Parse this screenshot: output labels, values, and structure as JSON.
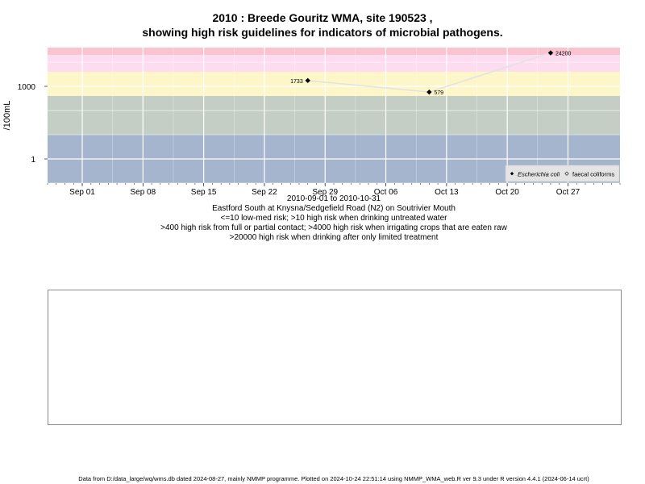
{
  "titles": {
    "line1": "2010 : Breede Gouritz WMA, site 190523 ,",
    "line2": "showing high risk guidelines for indicators of microbial pathogens."
  },
  "subtitles": [
    "2010-09-01 to 2010-10-31",
    "Eastford South at Knysna/Sedgefield Road (N2) on Soutrivier Mouth",
    "<=10 low-med risk; >10 high risk when drinking untreated water",
    ">400 high risk from full or partial contact; >4000 high risk when irrigating crops that are eaten raw",
    ">20000 high risk when drinking after only limited treatment"
  ],
  "footer": "Data from D:/data_large/wq/wms.db dated 2024-08-27, mainly NMMP programme. Plotted on 2024-10-24 22:51:14 using NMMP_WMA_web.R ver 9.3 under R version 4.4.1 (2024-06-14 ucrt)",
  "chart_data": {
    "type": "line",
    "ylabel": "/100mL",
    "y_scale": "log10",
    "ylim": [
      0.1,
      20000
    ],
    "y_ticks": [
      {
        "value": 1,
        "label": "1"
      },
      {
        "value": 1000,
        "label": "1000"
      }
    ],
    "x_start": "2010-08-28",
    "x_end": "2010-11-02",
    "x_ticks": [
      {
        "date": "2010-09-01",
        "label": "Sep 01"
      },
      {
        "date": "2010-09-08",
        "label": "Sep 08"
      },
      {
        "date": "2010-09-15",
        "label": "Sep 15"
      },
      {
        "date": "2010-09-22",
        "label": "Sep 22"
      },
      {
        "date": "2010-09-29",
        "label": "Sep 29"
      },
      {
        "date": "2010-10-06",
        "label": "Oct 06"
      },
      {
        "date": "2010-10-13",
        "label": "Oct 13"
      },
      {
        "date": "2010-10-20",
        "label": "Oct 20"
      },
      {
        "date": "2010-10-27",
        "label": "Oct 27"
      }
    ],
    "risk_bands": [
      {
        "from": 0.1,
        "to": 10,
        "color": "#a4b5cd"
      },
      {
        "from": 10,
        "to": 400,
        "color": "#c4cec4"
      },
      {
        "from": 400,
        "to": 4000,
        "color": "#fdf6c8"
      },
      {
        "from": 4000,
        "to": 20000,
        "color": "#fddcf0"
      },
      {
        "from": 20000,
        "to": 40000,
        "color": "#fbc2cf"
      }
    ],
    "grid": true,
    "series": [
      {
        "name": "Escherichia coli",
        "color": "#000000",
        "line_color": "#e2e2e2",
        "points": [
          {
            "date": "2010-09-27",
            "value": 1733,
            "label": "1733",
            "label_side": "left"
          },
          {
            "date": "2010-10-11",
            "value": 579,
            "label": "579",
            "label_side": "right"
          },
          {
            "date": "2010-10-25",
            "value": 24200,
            "label": "24200",
            "label_side": "right"
          }
        ]
      }
    ],
    "legend": {
      "position": "bottom-right",
      "entries": [
        "Escherichia coli",
        "faecal coliforms"
      ]
    }
  }
}
